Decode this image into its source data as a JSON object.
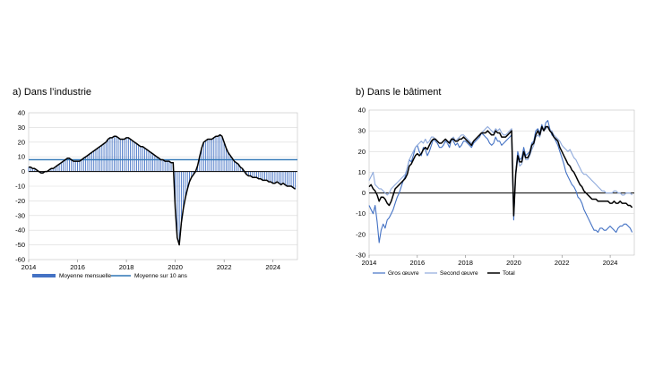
{
  "chart_data": [
    {
      "id": "industry",
      "panel_title": "a) Dans l’industrie",
      "type": "bar",
      "ylim": [
        -60,
        40
      ],
      "yticks": [
        "40",
        "30",
        "20",
        "10",
        "0",
        "-10",
        "-20",
        "-30",
        "-40",
        "-50",
        "-60"
      ],
      "xlim": [
        2014,
        2025
      ],
      "xticks": [
        "2014",
        "2016",
        "2018",
        "2020",
        "2022",
        "2024"
      ],
      "grid": true,
      "legend": [
        "Moyenne mensuelle",
        "Moyenne sur 10 ans"
      ],
      "colors": {
        "bars": "#4472c4",
        "line": "#000000",
        "avg": "#2e75b6"
      },
      "average_10y": 8,
      "x_start": 2014.0,
      "x_step": 0.0833,
      "series": [
        {
          "name": "Moyenne mensuelle",
          "values": [
            3,
            3,
            2,
            2,
            1,
            0,
            -1,
            -1,
            0,
            0,
            1,
            2,
            2,
            3,
            4,
            5,
            6,
            7,
            8,
            9,
            9,
            8,
            7,
            7,
            7,
            7,
            8,
            9,
            10,
            11,
            12,
            13,
            14,
            15,
            16,
            17,
            18,
            19,
            20,
            22,
            23,
            23,
            24,
            24,
            23,
            22,
            22,
            22,
            23,
            23,
            22,
            21,
            20,
            19,
            18,
            17,
            17,
            16,
            15,
            14,
            13,
            12,
            11,
            10,
            9,
            8,
            8,
            7,
            7,
            7,
            6,
            6,
            -25,
            -45,
            -50,
            -35,
            -25,
            -18,
            -12,
            -7,
            -4,
            -2,
            0,
            4,
            10,
            16,
            20,
            21,
            22,
            22,
            22,
            23,
            24,
            24,
            25,
            24,
            20,
            16,
            13,
            11,
            9,
            7,
            6,
            5,
            3,
            2,
            0,
            -2,
            -3,
            -3,
            -4,
            -4,
            -4,
            -5,
            -5,
            -6,
            -6,
            -6,
            -7,
            -7,
            -8,
            -8,
            -7,
            -8,
            -9,
            -8,
            -9,
            -10,
            -10,
            -10,
            -11,
            -12
          ]
        }
      ]
    },
    {
      "id": "construction",
      "panel_title": "b) Dans le bâtiment",
      "type": "line",
      "ylim": [
        -30,
        40
      ],
      "yticks": [
        "40",
        "30",
        "20",
        "10",
        "0",
        "-10",
        "-20",
        "-30"
      ],
      "xlim": [
        2014,
        2025
      ],
      "xticks": [
        "2014",
        "2016",
        "2018",
        "2020",
        "2022",
        "2024"
      ],
      "grid": true,
      "legend": [
        "Gros œuvre",
        "Second œuvre",
        "Total"
      ],
      "x_start": 2014.0,
      "x_step": 0.0833,
      "series": [
        {
          "name": "Gros œuvre",
          "color": "#4472c4",
          "values": [
            -6,
            -8,
            -10,
            -6,
            -14,
            -24,
            -18,
            -15,
            -17,
            -13,
            -12,
            -10,
            -8,
            -5,
            -2,
            0,
            3,
            6,
            8,
            12,
            16,
            15,
            18,
            22,
            23,
            20,
            18,
            22,
            21,
            18,
            20,
            23,
            26,
            25,
            24,
            22,
            22,
            23,
            25,
            24,
            22,
            26,
            25,
            23,
            24,
            22,
            23,
            25,
            25,
            24,
            23,
            22,
            24,
            25,
            26,
            27,
            29,
            28,
            27,
            26,
            24,
            23,
            24,
            27,
            25,
            25,
            23,
            24,
            25,
            26,
            27,
            28,
            -13,
            10,
            20,
            16,
            17,
            22,
            18,
            19,
            20,
            24,
            25,
            30,
            31,
            29,
            33,
            30,
            34,
            35,
            31,
            28,
            27,
            25,
            23,
            20,
            17,
            14,
            10,
            8,
            6,
            4,
            3,
            1,
            -2,
            -3,
            -5,
            -8,
            -10,
            -12,
            -14,
            -16,
            -18,
            -18,
            -19,
            -17,
            -17,
            -18,
            -18,
            -17,
            -16,
            -17,
            -18,
            -19,
            -17,
            -16,
            -16,
            -15,
            -15,
            -16,
            -17,
            -19
          ]
        },
        {
          "name": "Second œuvre",
          "color": "#8faadc",
          "values": [
            6,
            8,
            10,
            4,
            3,
            2,
            2,
            1,
            0,
            -1,
            0,
            2,
            3,
            4,
            5,
            6,
            7,
            8,
            9,
            12,
            16,
            18,
            20,
            22,
            23,
            24,
            25,
            24,
            26,
            24,
            25,
            27,
            27,
            26,
            25,
            24,
            24,
            25,
            26,
            24,
            25,
            26,
            27,
            25,
            26,
            27,
            28,
            28,
            27,
            26,
            25,
            24,
            25,
            26,
            27,
            28,
            29,
            30,
            31,
            32,
            31,
            30,
            29,
            31,
            30,
            31,
            29,
            28,
            28,
            29,
            30,
            31,
            -9,
            8,
            17,
            13,
            14,
            19,
            16,
            16,
            18,
            21,
            23,
            27,
            28,
            27,
            31,
            30,
            31,
            32,
            30,
            30,
            28,
            27,
            26,
            25,
            23,
            22,
            21,
            20,
            21,
            19,
            17,
            16,
            14,
            12,
            10,
            9,
            9,
            8,
            7,
            6,
            5,
            4,
            3,
            2,
            1,
            1,
            0,
            0,
            0,
            0,
            1,
            1,
            0,
            0,
            -1,
            -1,
            0,
            0,
            0,
            -1
          ]
        },
        {
          "name": "Total",
          "color": "#000000",
          "values": [
            3,
            4,
            2,
            1,
            -1,
            -4,
            -2,
            -2,
            -3,
            -5,
            -6,
            -4,
            -1,
            2,
            3,
            4,
            5,
            6,
            7,
            9,
            13,
            14,
            16,
            18,
            19,
            18,
            19,
            21,
            22,
            21,
            23,
            25,
            26,
            26,
            25,
            24,
            24,
            25,
            26,
            25,
            24,
            26,
            26,
            25,
            25,
            26,
            26,
            27,
            26,
            25,
            24,
            23,
            25,
            26,
            27,
            28,
            29,
            29,
            29,
            30,
            29,
            28,
            28,
            30,
            29,
            29,
            27,
            27,
            27,
            28,
            29,
            30,
            -11,
            9,
            18,
            15,
            15,
            20,
            17,
            17,
            19,
            23,
            24,
            28,
            30,
            28,
            32,
            30,
            32,
            32,
            30,
            29,
            27,
            26,
            25,
            22,
            20,
            18,
            16,
            14,
            13,
            11,
            10,
            8,
            6,
            4,
            3,
            1,
            0,
            -1,
            -2,
            -3,
            -3,
            -3,
            -4,
            -4,
            -4,
            -4,
            -4,
            -4,
            -5,
            -5,
            -4,
            -5,
            -5,
            -4,
            -5,
            -5,
            -5,
            -6,
            -6,
            -7
          ]
        }
      ]
    }
  ]
}
